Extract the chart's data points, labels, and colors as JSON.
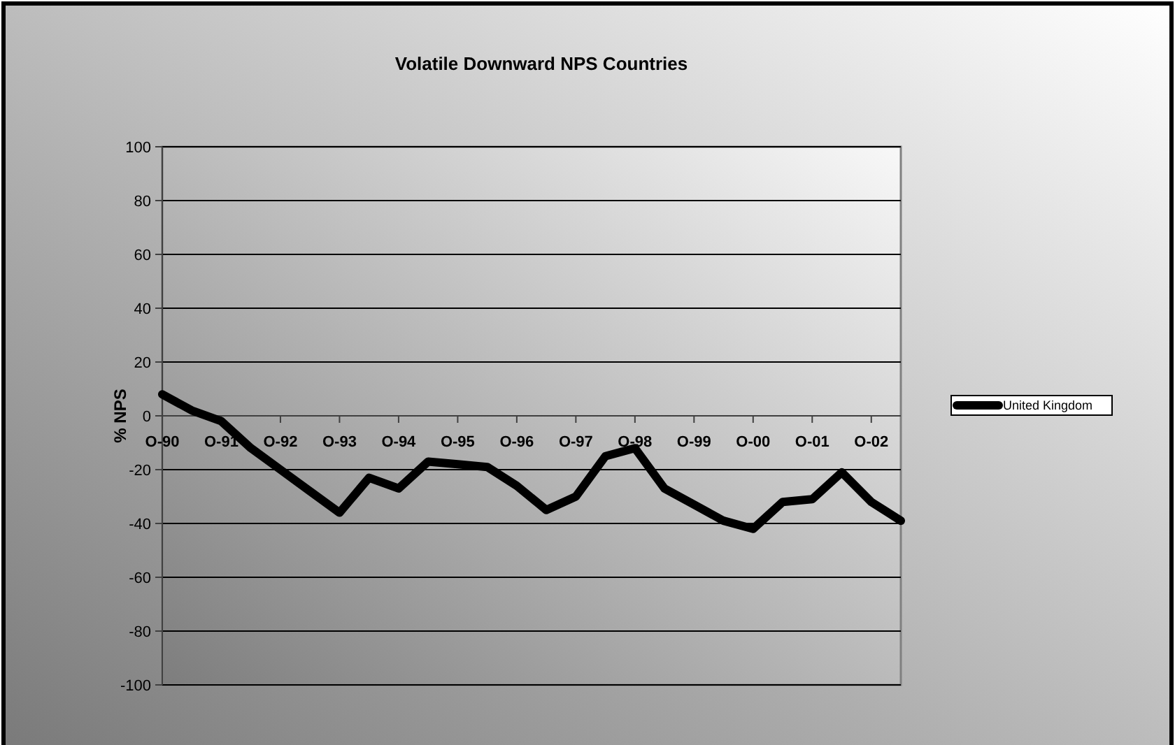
{
  "chart_data": {
    "type": "line",
    "title": "Volatile Downward NPS Countries",
    "ylabel": "% NPS",
    "categories": [
      "O-90",
      null,
      "O-91",
      null,
      "O-92",
      null,
      "O-93",
      null,
      "O-94",
      null,
      "O-95",
      null,
      "O-96",
      null,
      "O-97",
      null,
      "O-98",
      null,
      "O-99",
      null,
      "O-00",
      null,
      "O-01",
      null,
      "O-02",
      null
    ],
    "series": [
      {
        "name": "United Kingdom",
        "color": "#000000",
        "values": [
          8,
          2,
          -2,
          -12,
          -20,
          -28,
          -36,
          -23,
          -27,
          -17,
          -18,
          -19,
          -26,
          -35,
          -30,
          -15,
          -12,
          -27,
          -33,
          -39,
          -42,
          -32,
          -31,
          -21,
          -32,
          -39
        ]
      }
    ],
    "ylim": [
      -100,
      100
    ],
    "yticks": [
      -100,
      -80,
      -60,
      -40,
      -20,
      0,
      20,
      40,
      60,
      80,
      100
    ],
    "grid": "y",
    "legend": "right",
    "marker": "none",
    "line_style": "solid"
  }
}
